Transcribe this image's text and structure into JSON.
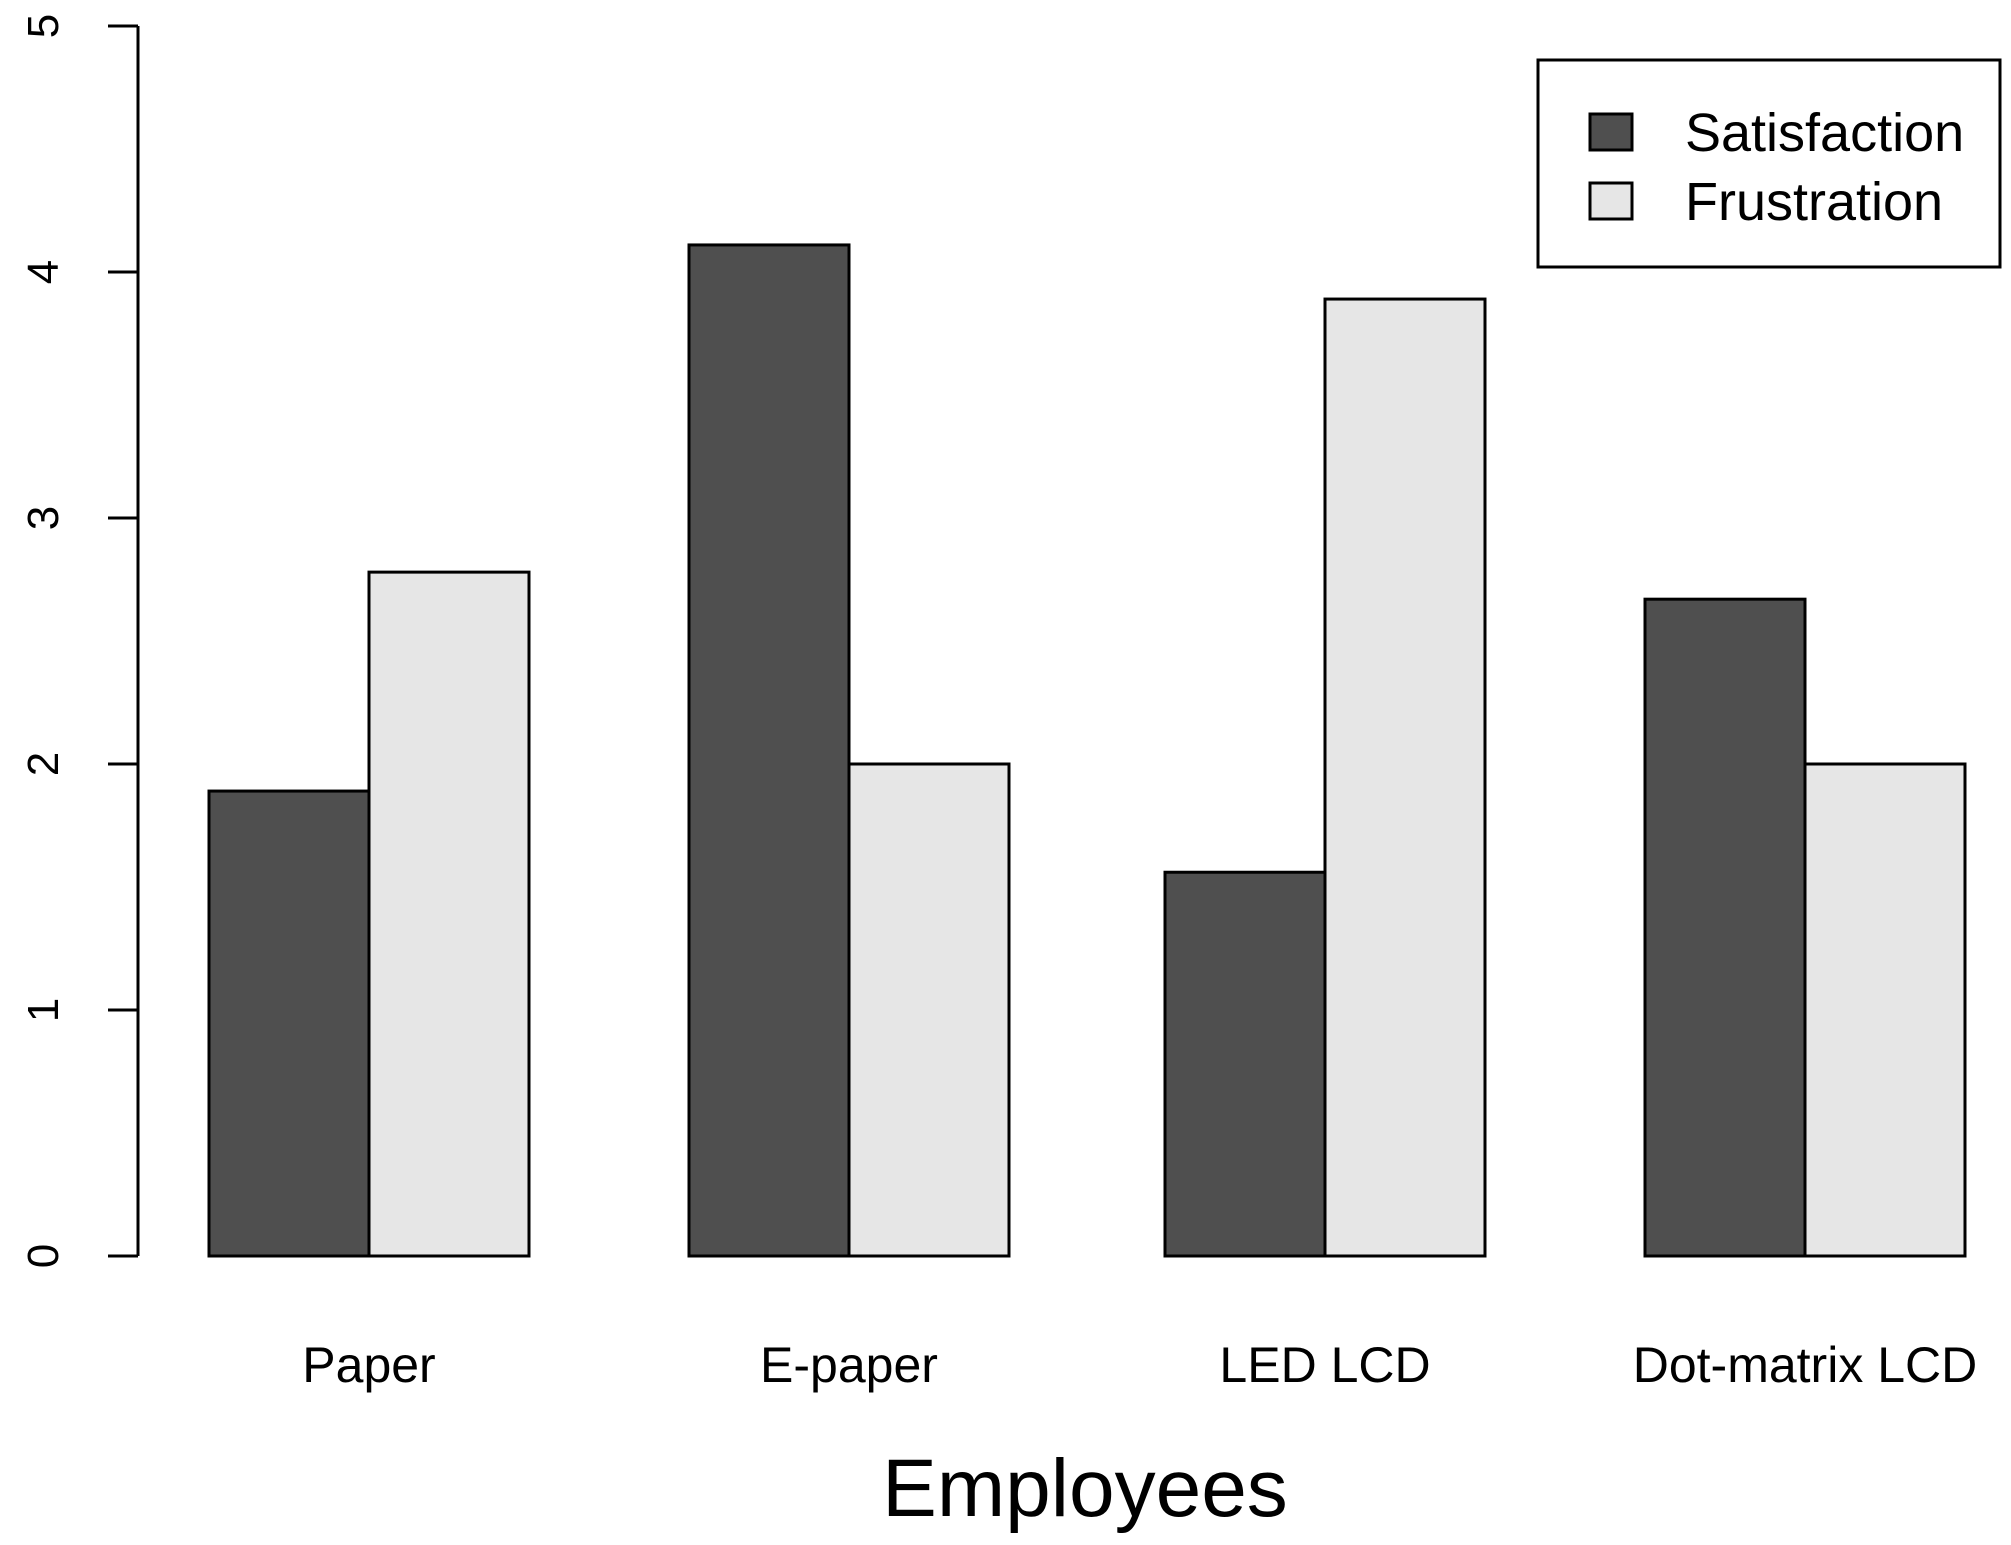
{
  "chart_data": {
    "type": "bar",
    "title": "",
    "xlabel": "Employees",
    "ylabel": "",
    "categories": [
      "Paper",
      "E-paper",
      "LED LCD",
      "Dot-matrix LCD"
    ],
    "series": [
      {
        "name": "Satisfaction",
        "color": "#4f4f4f",
        "values": [
          1.89,
          4.11,
          1.56,
          2.67
        ]
      },
      {
        "name": "Frustration",
        "color": "#e6e6e6",
        "values": [
          2.78,
          2.0,
          3.89,
          2.0
        ]
      }
    ],
    "ylim": [
      0,
      5
    ],
    "yticks": [
      "0",
      "1",
      "2",
      "3",
      "4",
      "5"
    ],
    "grid": false,
    "legend_position": "top-right"
  }
}
